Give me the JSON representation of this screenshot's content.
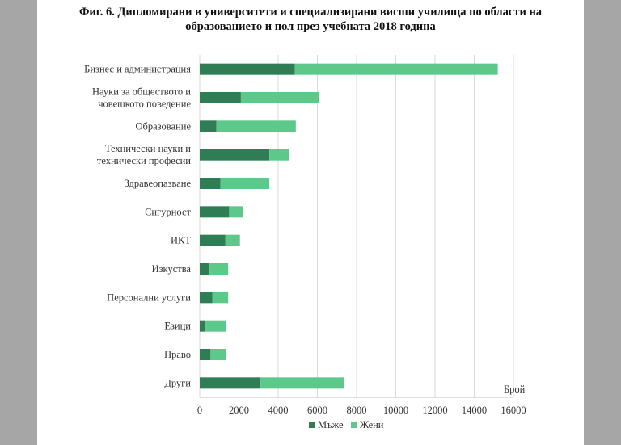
{
  "chart_data": {
    "type": "bar",
    "orientation": "horizontal",
    "stacked": true,
    "title": "Фиг. 6. Дипломирани в университети и специализирани висши училища по области на образованието и пол през учебната 2018 година",
    "title_lines": [
      "Фиг. 6. Дипломирани в университети и специализирани висши училища по области на",
      "образованието и пол през учебната 2018 година"
    ],
    "xlabel": "Брой",
    "xlim": [
      0,
      16000
    ],
    "xticks": [
      "0",
      "2000",
      "4000",
      "6000",
      "8000",
      "10000",
      "12000",
      "14000",
      "16000"
    ],
    "grid": true,
    "legend_position": "bottom",
    "categories": [
      [
        "Бизнес и администрация"
      ],
      [
        "Науки за обществото и",
        "човешкото поведение"
      ],
      [
        "Образование"
      ],
      [
        "Технически науки и",
        "технически професии"
      ],
      [
        "Здравеопазване"
      ],
      [
        "Сигурност"
      ],
      [
        "ИКТ"
      ],
      [
        "Изкуства"
      ],
      [
        "Персонални услуги"
      ],
      [
        "Езици"
      ],
      [
        "Право"
      ],
      [
        "Други"
      ]
    ],
    "series": [
      {
        "name": "Мъже",
        "color": "#2e7d55",
        "values": [
          4850,
          2100,
          850,
          3550,
          1050,
          1500,
          1300,
          500,
          650,
          300,
          550,
          3100
        ]
      },
      {
        "name": "Жени",
        "color": "#5cc98a",
        "values": [
          10350,
          4000,
          4050,
          1000,
          2500,
          700,
          750,
          950,
          800,
          1050,
          800,
          4250
        ]
      }
    ]
  }
}
